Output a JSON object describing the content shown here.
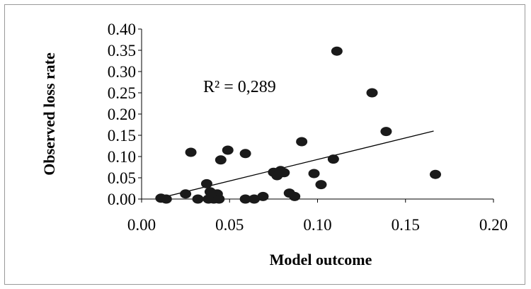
{
  "chart_data": {
    "type": "scatter",
    "xlabel": "Model outcome",
    "ylabel": "Observed loss rate",
    "xlim": [
      0,
      0.2
    ],
    "ylim": [
      0,
      0.4
    ],
    "x_ticks": [
      "0.00",
      "0.05",
      "0.10",
      "0.15",
      "0.20"
    ],
    "y_ticks": [
      "0.00",
      "0.05",
      "0.10",
      "0.15",
      "0.20",
      "0.25",
      "0.30",
      "0.35",
      "0.40"
    ],
    "annotation": "R² = 0,289",
    "grid": false,
    "colors": {
      "points": "#1a1a1a",
      "trendline": "#000000",
      "axis": "#000000"
    },
    "trendline": {
      "x": [
        0.01,
        0.166
      ],
      "y": [
        0.002,
        0.16
      ]
    },
    "points": [
      {
        "x": 0.011,
        "y": 0.002
      },
      {
        "x": 0.014,
        "y": 0.0
      },
      {
        "x": 0.025,
        "y": 0.012
      },
      {
        "x": 0.028,
        "y": 0.11
      },
      {
        "x": 0.032,
        "y": 0.0
      },
      {
        "x": 0.037,
        "y": 0.036
      },
      {
        "x": 0.038,
        "y": 0.0
      },
      {
        "x": 0.039,
        "y": 0.017
      },
      {
        "x": 0.041,
        "y": 0.0
      },
      {
        "x": 0.042,
        "y": 0.007
      },
      {
        "x": 0.043,
        "y": 0.012
      },
      {
        "x": 0.044,
        "y": 0.0
      },
      {
        "x": 0.045,
        "y": 0.092
      },
      {
        "x": 0.049,
        "y": 0.115
      },
      {
        "x": 0.059,
        "y": 0.107
      },
      {
        "x": 0.059,
        "y": 0.0
      },
      {
        "x": 0.064,
        "y": 0.0
      },
      {
        "x": 0.069,
        "y": 0.006
      },
      {
        "x": 0.075,
        "y": 0.063
      },
      {
        "x": 0.077,
        "y": 0.055
      },
      {
        "x": 0.079,
        "y": 0.067
      },
      {
        "x": 0.081,
        "y": 0.062
      },
      {
        "x": 0.084,
        "y": 0.014
      },
      {
        "x": 0.087,
        "y": 0.006
      },
      {
        "x": 0.091,
        "y": 0.135
      },
      {
        "x": 0.098,
        "y": 0.06
      },
      {
        "x": 0.102,
        "y": 0.034
      },
      {
        "x": 0.109,
        "y": 0.094
      },
      {
        "x": 0.111,
        "y": 0.348
      },
      {
        "x": 0.131,
        "y": 0.25
      },
      {
        "x": 0.139,
        "y": 0.159
      },
      {
        "x": 0.167,
        "y": 0.058
      }
    ]
  }
}
